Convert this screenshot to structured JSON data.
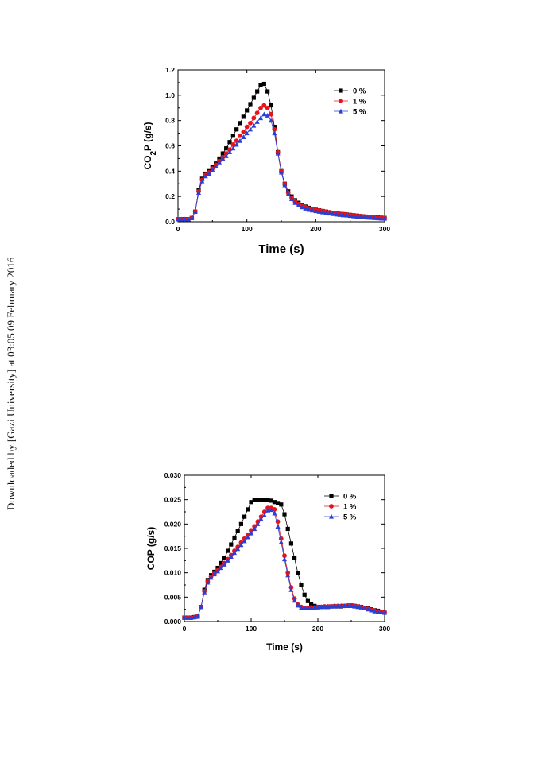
{
  "side_note": "Downloaded by [Gazi University] at 03:05 09 February 2016",
  "legend_labels": [
    "0 %",
    "1 %",
    "5 %"
  ],
  "series_colors": [
    "#000000",
    "#e8141b",
    "#2a3fd6"
  ],
  "series_markers": [
    "square",
    "circle",
    "triangle"
  ],
  "chart_data": [
    {
      "type": "line",
      "ylabel_main": "CO",
      "ylabel_sub": "2",
      "ylabel_rest": "P (g/s)",
      "xlabel": "Time (s)",
      "xlim": [
        0,
        300
      ],
      "ylim": [
        0,
        1.2
      ],
      "xticks": [
        0,
        100,
        200,
        300
      ],
      "xtick_labels": [
        "0",
        "100",
        "200",
        "300"
      ],
      "yticks": [
        0,
        0.2,
        0.4,
        0.6,
        0.8,
        1.0,
        1.2
      ],
      "ytick_labels": [
        "0.0",
        "0.2",
        "0.4",
        "0.6",
        "0.8",
        "1.0",
        "1.2"
      ],
      "legend_position": "top-right",
      "x": [
        0,
        5,
        10,
        15,
        20,
        25,
        30,
        35,
        40,
        45,
        50,
        55,
        60,
        65,
        70,
        75,
        80,
        85,
        90,
        95,
        100,
        105,
        110,
        115,
        120,
        125,
        130,
        135,
        140,
        145,
        150,
        155,
        160,
        165,
        170,
        175,
        180,
        185,
        190,
        195,
        200,
        205,
        210,
        215,
        220,
        225,
        230,
        235,
        240,
        245,
        250,
        255,
        260,
        265,
        270,
        275,
        280,
        285,
        290,
        295,
        300
      ],
      "series": [
        {
          "name": "0 %",
          "values": [
            0.02,
            0.02,
            0.02,
            0.02,
            0.03,
            0.08,
            0.25,
            0.34,
            0.38,
            0.4,
            0.43,
            0.46,
            0.5,
            0.54,
            0.58,
            0.63,
            0.68,
            0.73,
            0.78,
            0.83,
            0.88,
            0.93,
            0.98,
            1.03,
            1.08,
            1.09,
            1.03,
            0.92,
            0.75,
            0.55,
            0.4,
            0.3,
            0.24,
            0.2,
            0.17,
            0.15,
            0.13,
            0.12,
            0.11,
            0.1,
            0.095,
            0.09,
            0.085,
            0.08,
            0.075,
            0.07,
            0.065,
            0.062,
            0.06,
            0.057,
            0.054,
            0.051,
            0.048,
            0.045,
            0.042,
            0.04,
            0.038,
            0.036,
            0.034,
            0.032,
            0.03
          ]
        },
        {
          "name": "1 %",
          "values": [
            0.02,
            0.02,
            0.02,
            0.02,
            0.03,
            0.08,
            0.24,
            0.33,
            0.37,
            0.39,
            0.42,
            0.45,
            0.48,
            0.51,
            0.54,
            0.57,
            0.61,
            0.64,
            0.68,
            0.71,
            0.75,
            0.78,
            0.82,
            0.86,
            0.9,
            0.92,
            0.9,
            0.85,
            0.73,
            0.55,
            0.4,
            0.3,
            0.23,
            0.19,
            0.16,
            0.14,
            0.125,
            0.115,
            0.105,
            0.1,
            0.095,
            0.09,
            0.085,
            0.08,
            0.075,
            0.07,
            0.066,
            0.063,
            0.06,
            0.057,
            0.054,
            0.051,
            0.048,
            0.045,
            0.042,
            0.04,
            0.038,
            0.036,
            0.034,
            0.032,
            0.03
          ]
        },
        {
          "name": "5 %",
          "values": [
            0.02,
            0.02,
            0.02,
            0.02,
            0.03,
            0.08,
            0.23,
            0.32,
            0.36,
            0.38,
            0.41,
            0.44,
            0.47,
            0.5,
            0.52,
            0.55,
            0.58,
            0.61,
            0.64,
            0.67,
            0.7,
            0.73,
            0.76,
            0.79,
            0.82,
            0.85,
            0.84,
            0.8,
            0.7,
            0.54,
            0.39,
            0.29,
            0.22,
            0.18,
            0.15,
            0.13,
            0.115,
            0.105,
            0.095,
            0.09,
            0.085,
            0.08,
            0.075,
            0.07,
            0.066,
            0.062,
            0.058,
            0.055,
            0.052,
            0.05,
            0.047,
            0.044,
            0.041,
            0.038,
            0.036,
            0.034,
            0.032,
            0.03,
            0.028,
            0.026,
            0.025
          ]
        }
      ]
    },
    {
      "type": "line",
      "ylabel_main": "COP (g/s)",
      "ylabel_sub": "",
      "ylabel_rest": "",
      "xlabel": "Time (s)",
      "xlim": [
        0,
        300
      ],
      "ylim": [
        0,
        0.03
      ],
      "xticks": [
        0,
        100,
        200,
        300
      ],
      "xtick_labels": [
        "0",
        "100",
        "200",
        "300"
      ],
      "yticks": [
        0,
        0.005,
        0.01,
        0.015,
        0.02,
        0.025,
        0.03
      ],
      "ytick_labels": [
        "0.000",
        "0.005",
        "0.010",
        "0.015",
        "0.020",
        "0.025",
        "0.030"
      ],
      "legend_position": "top-right",
      "x": [
        0,
        5,
        10,
        15,
        20,
        25,
        30,
        35,
        40,
        45,
        50,
        55,
        60,
        65,
        70,
        75,
        80,
        85,
        90,
        95,
        100,
        105,
        110,
        115,
        120,
        125,
        130,
        135,
        140,
        145,
        150,
        155,
        160,
        165,
        170,
        175,
        180,
        185,
        190,
        195,
        200,
        205,
        210,
        215,
        220,
        225,
        230,
        235,
        240,
        245,
        250,
        255,
        260,
        265,
        270,
        275,
        280,
        285,
        290,
        295,
        300
      ],
      "series": [
        {
          "name": "0 %",
          "values": [
            0.0008,
            0.0008,
            0.0008,
            0.0009,
            0.001,
            0.003,
            0.0065,
            0.0085,
            0.0095,
            0.0102,
            0.011,
            0.012,
            0.013,
            0.0145,
            0.0158,
            0.0172,
            0.0186,
            0.02,
            0.0215,
            0.023,
            0.0245,
            0.025,
            0.025,
            0.025,
            0.0249,
            0.025,
            0.0248,
            0.0245,
            0.0243,
            0.024,
            0.022,
            0.019,
            0.016,
            0.013,
            0.01,
            0.0075,
            0.0055,
            0.0042,
            0.0035,
            0.0032,
            0.003,
            0.003,
            0.003,
            0.003,
            0.0031,
            0.0031,
            0.0031,
            0.0031,
            0.0032,
            0.0032,
            0.0033,
            0.0032,
            0.0031,
            0.003,
            0.0028,
            0.0027,
            0.0025,
            0.0023,
            0.0022,
            0.002,
            0.0018
          ]
        },
        {
          "name": "1 %",
          "values": [
            0.0008,
            0.0008,
            0.0008,
            0.0009,
            0.001,
            0.003,
            0.0062,
            0.0082,
            0.0092,
            0.0098,
            0.0105,
            0.0112,
            0.012,
            0.0128,
            0.0136,
            0.0145,
            0.0153,
            0.0162,
            0.017,
            0.0178,
            0.0187,
            0.0195,
            0.0205,
            0.0215,
            0.0225,
            0.0233,
            0.0233,
            0.023,
            0.0205,
            0.017,
            0.0135,
            0.01,
            0.007,
            0.0047,
            0.0035,
            0.003,
            0.0028,
            0.0028,
            0.0029,
            0.0029,
            0.003,
            0.003,
            0.0031,
            0.0031,
            0.0031,
            0.0032,
            0.0032,
            0.0032,
            0.0032,
            0.0033,
            0.0033,
            0.0032,
            0.0031,
            0.003,
            0.0028,
            0.0026,
            0.0024,
            0.0022,
            0.0021,
            0.002,
            0.0019
          ]
        },
        {
          "name": "5 %",
          "values": [
            0.0008,
            0.0008,
            0.0008,
            0.0009,
            0.001,
            0.003,
            0.006,
            0.008,
            0.009,
            0.0097,
            0.0103,
            0.011,
            0.0117,
            0.0125,
            0.0133,
            0.0141,
            0.0149,
            0.0157,
            0.0165,
            0.0173,
            0.0181,
            0.019,
            0.02,
            0.021,
            0.0218,
            0.0228,
            0.0229,
            0.0222,
            0.0195,
            0.0163,
            0.0128,
            0.0095,
            0.0065,
            0.0043,
            0.0033,
            0.0028,
            0.0027,
            0.0027,
            0.0028,
            0.0028,
            0.0029,
            0.003,
            0.003,
            0.003,
            0.0031,
            0.0031,
            0.0031,
            0.0032,
            0.0032,
            0.0032,
            0.0032,
            0.0031,
            0.003,
            0.0029,
            0.0027,
            0.0025,
            0.0023,
            0.0021,
            0.002,
            0.0019,
            0.0018
          ]
        }
      ]
    }
  ]
}
